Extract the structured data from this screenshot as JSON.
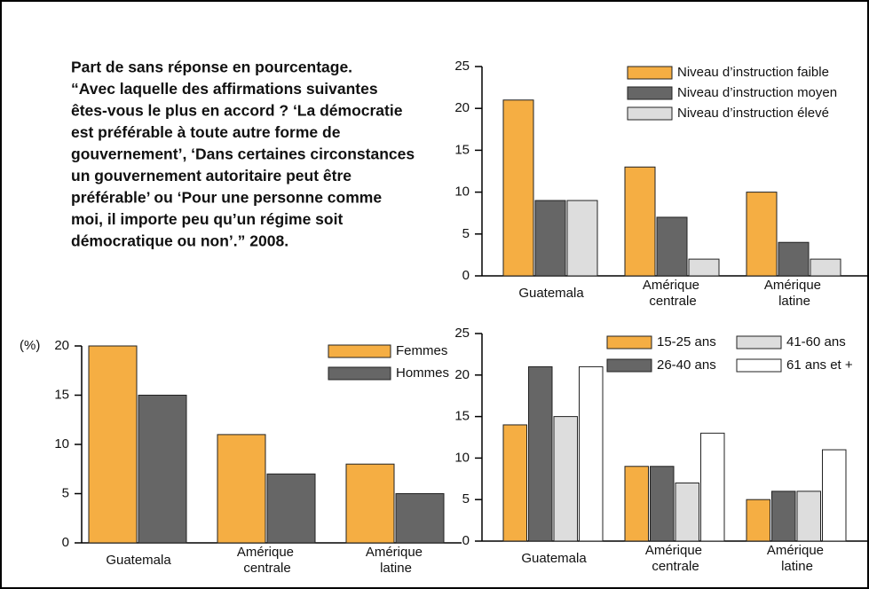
{
  "description": [
    "Part de sans réponse en pourcentage.",
    " “Avec laquelle des affirmations suivantes",
    "êtes-vous le plus en accord ? ‘La démocratie",
    "est préférable à toute autre forme de",
    "gouvernement’, ‘Dans certaines circonstances",
    "un gouvernement autoritaire peut être",
    "préférable’ ou ‘Pour une personne comme",
    "moi, il importe peu qu’un régime soit",
    "démocratique ou non’.” 2008."
  ],
  "chart_data": [
    {
      "type": "bar",
      "categories": [
        "Guatemala",
        "Amérique centrale",
        "Amérique latine"
      ],
      "series": [
        {
          "name": "Niveau d’instruction faible",
          "color": "#f5ae43",
          "values": [
            21,
            13,
            10
          ]
        },
        {
          "name": "Niveau d’instruction moyen",
          "color": "#666666",
          "values": [
            9,
            7,
            4
          ]
        },
        {
          "name": "Niveau d’instruction élevé",
          "color": "#dddddd",
          "values": [
            9,
            2,
            2
          ]
        }
      ],
      "ylim": [
        0,
        25
      ],
      "yticks": [
        0,
        5,
        10,
        15,
        20,
        25
      ],
      "grid": false
    },
    {
      "type": "bar",
      "y_label": "(%)",
      "categories": [
        "Guatemala",
        "Amérique centrale",
        "Amérique latine"
      ],
      "series": [
        {
          "name": "Femmes",
          "color": "#f5ae43",
          "values": [
            20,
            11,
            8
          ]
        },
        {
          "name": "Hommes",
          "color": "#666666",
          "values": [
            15,
            7,
            5
          ]
        }
      ],
      "ylim": [
        0,
        20
      ],
      "yticks": [
        0,
        5,
        10,
        15,
        20
      ],
      "grid": false
    },
    {
      "type": "bar",
      "categories": [
        "Guatemala",
        "Amérique centrale",
        "Amérique latine"
      ],
      "series": [
        {
          "name": "15-25 ans",
          "color": "#f5ae43",
          "values": [
            14,
            9,
            5
          ]
        },
        {
          "name": "26-40 ans",
          "color": "#666666",
          "values": [
            21,
            9,
            6
          ]
        },
        {
          "name": "41-60 ans",
          "color": "#dddddd",
          "values": [
            15,
            7,
            6
          ]
        },
        {
          "name": "61 ans et +",
          "color": "#ffffff",
          "values": [
            21,
            13,
            11
          ]
        }
      ],
      "ylim": [
        0,
        25
      ],
      "yticks": [
        0,
        5,
        10,
        15,
        20,
        25
      ],
      "grid": false
    }
  ]
}
